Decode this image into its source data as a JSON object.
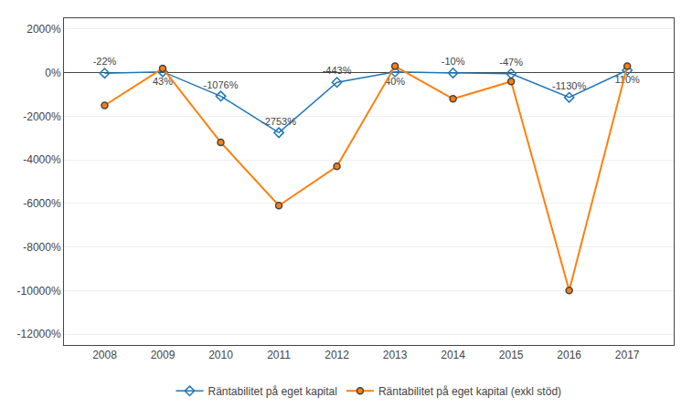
{
  "chart_data": {
    "type": "line",
    "x": [
      2008,
      2009,
      2010,
      2011,
      2012,
      2013,
      2014,
      2015,
      2016,
      2017
    ],
    "series": [
      {
        "name": "Räntabilitet på eget kapital",
        "values": [
          -22,
          43,
          -1076,
          -2753,
          -443,
          40,
          -10,
          -47,
          -1130,
          110
        ],
        "value_labels": [
          "-22%",
          "43%",
          "-1076%",
          "-2753%",
          "-443%",
          "40%",
          "-10%",
          "-47%",
          "-1130%",
          "110%"
        ],
        "data_labels": true,
        "marker": "diamond"
      },
      {
        "name": "Räntabilitet på eget kapital (exkl stöd)",
        "values": [
          -1500,
          200,
          -3200,
          -6100,
          -4300,
          300,
          -1200,
          -400,
          -10000,
          300
        ],
        "marker": "circle"
      }
    ],
    "xlim": [
      2007.3,
      2017.8
    ],
    "xticks": [
      2008,
      2009,
      2010,
      2011,
      2012,
      2013,
      2014,
      2015,
      2016,
      2017
    ],
    "ylim": [
      -12500,
      2500
    ],
    "yticks": [
      {
        "value": 2000,
        "label": "2000%"
      },
      {
        "value": 0,
        "label": "0%"
      },
      {
        "value": -2000,
        "label": "-2000%"
      },
      {
        "value": -4000,
        "label": "-4000%"
      },
      {
        "value": -6000,
        "label": "-6000%"
      },
      {
        "value": -8000,
        "label": "-8000%"
      },
      {
        "value": -10000,
        "label": "-10000%"
      },
      {
        "value": -12000,
        "label": "-12000%"
      }
    ],
    "grid": "y",
    "legend": "bottom"
  }
}
